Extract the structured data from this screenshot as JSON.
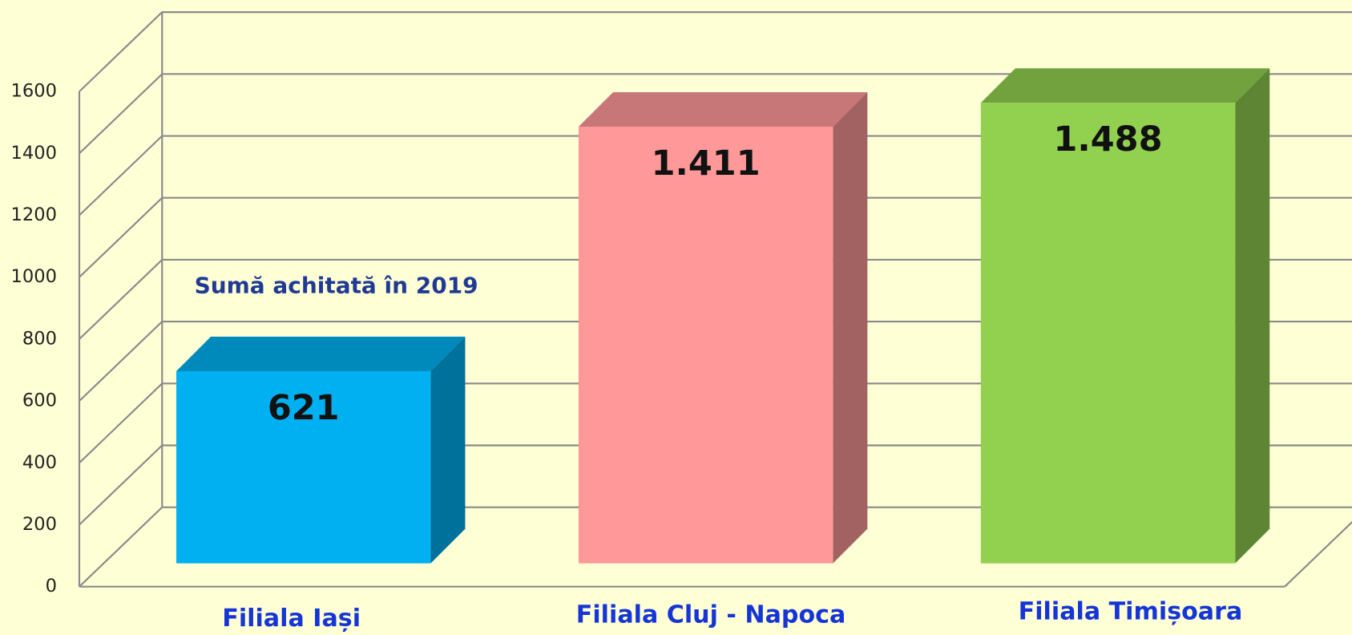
{
  "chart_data": {
    "type": "bar3d",
    "categories": [
      "Filiala Iași",
      "Filiala Cluj - Napoca",
      "Filiala Timișoara"
    ],
    "series": [
      {
        "name": "Sumă achitată în 2019",
        "colors": [
          "#00b0f0",
          "#ff9999",
          "#92d050"
        ],
        "values": [
          621,
          1411,
          1488
        ],
        "value_labels": [
          "621",
          "1.411",
          "1.488"
        ]
      }
    ],
    "ylim": [
      0,
      1600
    ],
    "yticks": [
      0,
      200,
      400,
      600,
      800,
      1000,
      1200,
      1400,
      1600
    ],
    "grid": true
  }
}
